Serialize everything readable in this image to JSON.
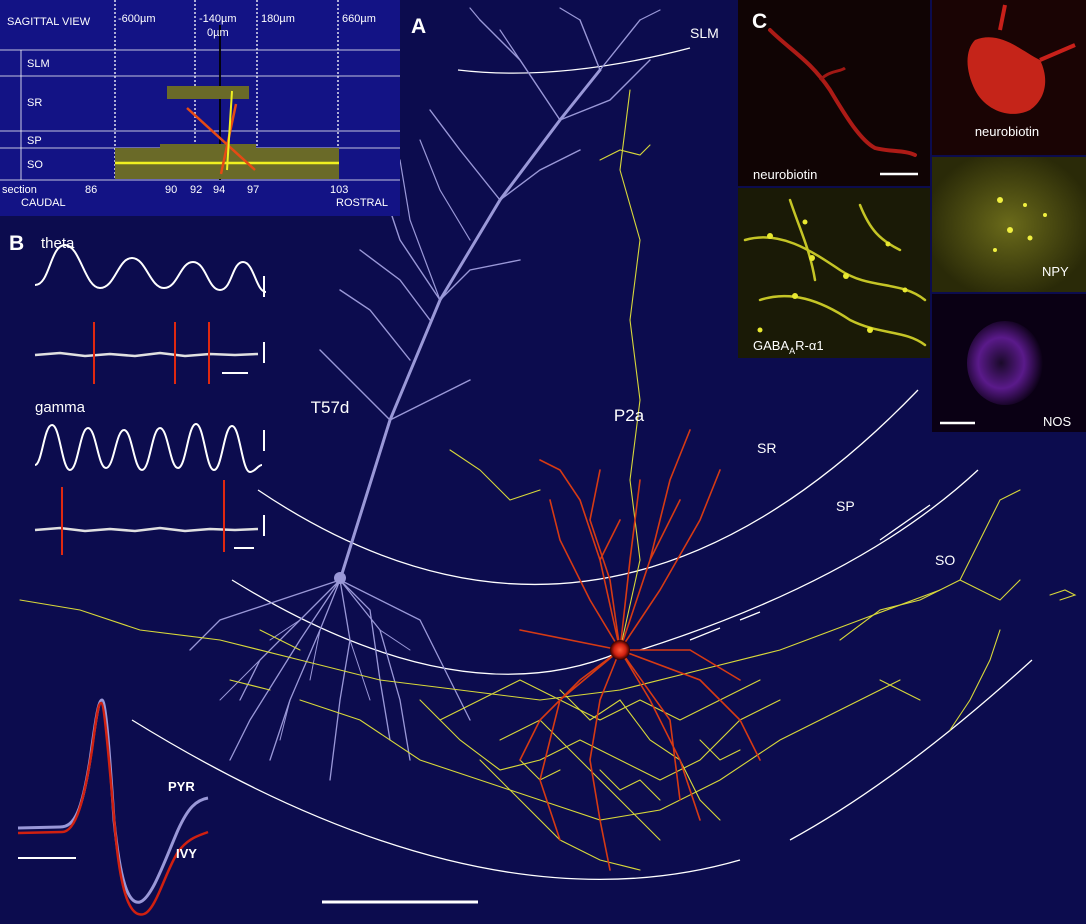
{
  "panel_letters": {
    "a": "A",
    "b": "B",
    "c": "C"
  },
  "sagittal": {
    "title": "SAGITTAL VIEW",
    "positions": [
      "-600µm",
      "-140µm",
      "0µm",
      "180µm",
      "660µm"
    ],
    "layers": [
      "SLM",
      "SR",
      "SP",
      "SO"
    ],
    "section_label": "section",
    "sections": [
      "86",
      "90",
      "92",
      "94",
      "97",
      "103"
    ],
    "caudal": "CAUDAL",
    "rostral": "ROSTRAL"
  },
  "traces": {
    "theta": "theta",
    "gamma": "gamma"
  },
  "waveform": {
    "pyr": "PYR",
    "ivy": "IVY"
  },
  "cells": {
    "pyramidal": "T57d",
    "ivy": "P2a"
  },
  "layers_main": {
    "slm": "SLM",
    "sr": "SR",
    "sp": "SP",
    "so": "SO"
  },
  "stains": {
    "neurobiotin_left": "neurobiotin",
    "neurobiotin_right": "neurobiotin",
    "gaba_main": "GABA",
    "gaba_sub": "A",
    "gaba_tail": "R-α1",
    "npy": "NPY",
    "nos": "NOS"
  },
  "colors": {
    "background": "#0c0c4e",
    "pyramidal": "#9a98d8",
    "ivy_dendrites": "#d63a14",
    "ivy_axon": "#d8d83a",
    "neurobiotin": "#d8281c",
    "npy": "#e0e02c",
    "nos": "#9b3ad8"
  }
}
